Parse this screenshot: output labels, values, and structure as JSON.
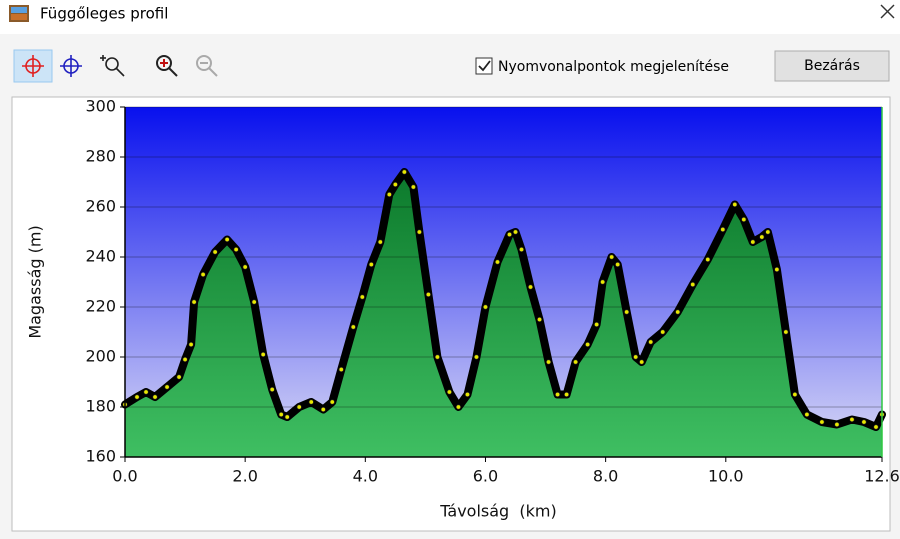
{
  "window": {
    "title": "Függőleges profil",
    "checkbox_label": "Nyomvonalpontok megjelenítése",
    "checkbox_checked": true,
    "button": "Bezárás"
  },
  "chart_data": {
    "type": "area",
    "x_label": "Távolság  (km)",
    "y_label": "Magasság (m)",
    "x": [
      0.0,
      0.2,
      0.35,
      0.5,
      0.7,
      0.9,
      1.0,
      1.1,
      1.15,
      1.3,
      1.5,
      1.7,
      1.85,
      2.0,
      2.15,
      2.3,
      2.45,
      2.6,
      2.7,
      2.9,
      3.1,
      3.3,
      3.45,
      3.6,
      3.8,
      3.95,
      4.1,
      4.25,
      4.4,
      4.5,
      4.65,
      4.8,
      4.9,
      5.05,
      5.2,
      5.4,
      5.55,
      5.7,
      5.85,
      6.0,
      6.2,
      6.4,
      6.5,
      6.6,
      6.75,
      6.9,
      7.05,
      7.2,
      7.35,
      7.5,
      7.7,
      7.85,
      7.95,
      8.1,
      8.2,
      8.35,
      8.5,
      8.6,
      8.75,
      8.95,
      9.2,
      9.45,
      9.7,
      9.95,
      10.15,
      10.3,
      10.45,
      10.6,
      10.7,
      10.85,
      11.0,
      11.15,
      11.35,
      11.6,
      11.85,
      12.1,
      12.3,
      12.5,
      12.6
    ],
    "values": [
      181,
      184,
      186,
      184,
      188,
      192,
      199,
      205,
      222,
      233,
      242,
      247,
      243,
      236,
      222,
      201,
      187,
      177,
      176,
      180,
      182,
      179,
      182,
      195,
      212,
      224,
      237,
      246,
      265,
      269,
      274,
      268,
      250,
      225,
      200,
      186,
      180,
      185,
      200,
      220,
      238,
      249,
      250,
      243,
      228,
      215,
      198,
      185,
      185,
      198,
      205,
      213,
      230,
      240,
      237,
      218,
      200,
      198,
      206,
      210,
      218,
      229,
      239,
      251,
      261,
      255,
      246,
      248,
      250,
      235,
      210,
      185,
      177,
      174,
      173,
      175,
      174,
      172,
      177
    ],
    "xlim": [
      0,
      12.6
    ],
    "ylim": [
      160,
      300
    ],
    "xticks": [
      {
        "value": 0,
        "label": "0.0"
      },
      {
        "value": 2,
        "label": "2.0"
      },
      {
        "value": 4,
        "label": "4.0"
      },
      {
        "value": 6,
        "label": "6.0"
      },
      {
        "value": 8,
        "label": "8.0"
      },
      {
        "value": 10,
        "label": "10.0"
      },
      12.6
    ],
    "yticks": [
      160,
      180,
      200,
      220,
      240,
      260,
      280,
      300
    ],
    "grid": true,
    "line_color": "#000000",
    "point_color": "#e8e800",
    "fill_color": "#1f9a45"
  }
}
